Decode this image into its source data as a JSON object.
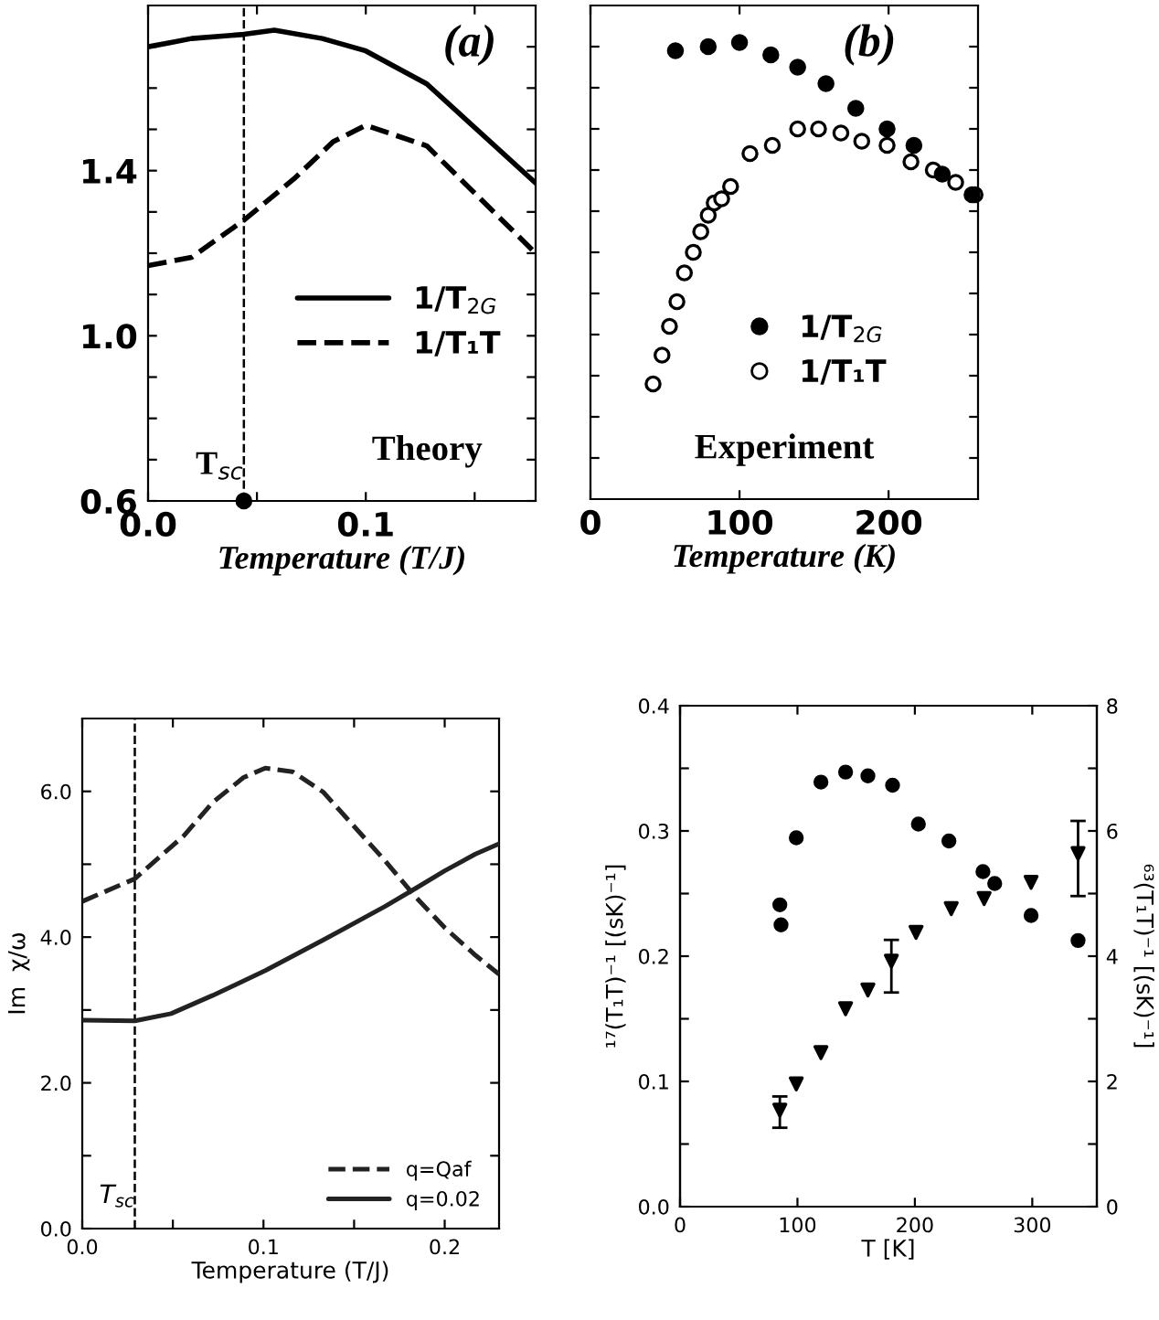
{
  "chart_data": [
    {
      "type": "line",
      "xlabel": "Temperature (T/J)",
      "annotations": [
        "(a)",
        "Theory"
      ],
      "xlim": [
        0,
        0.178
      ],
      "ylim": [
        0.6,
        1.8
      ],
      "xticks": [
        {
          "value": 0,
          "label": "0.0"
        },
        {
          "value": 0.05,
          "label": null
        },
        0.1,
        {
          "value": 0.15,
          "label": null
        }
      ],
      "yticks": [
        0.6,
        {
          "value": 0.7,
          "label": null
        },
        {
          "value": 0.8,
          "label": null
        },
        {
          "value": 0.9,
          "label": null
        },
        {
          "value": 1,
          "label": "1.0"
        },
        {
          "value": 1.1,
          "label": null
        },
        {
          "value": 1.2,
          "label": null
        },
        {
          "value": 1.3,
          "label": null
        },
        1.4,
        {
          "value": 1.5,
          "label": null
        },
        {
          "value": 1.6,
          "label": null
        },
        {
          "value": 1.7,
          "label": null
        }
      ],
      "legend": "right",
      "ref_lines": [
        {
          "axis": "x",
          "value": 0.044,
          "label": "T$_{sc}$",
          "line_style": "dashed",
          "color": "#000000"
        }
      ],
      "series": [
        {
          "name": "1/T$_{2G}$",
          "color": "#000000",
          "line_style": "solid",
          "x": [
            0,
            0.01,
            0.02,
            0.044,
            0.058,
            0.08,
            0.1,
            0.128,
            0.153,
            0.178
          ],
          "values": [
            1.7,
            1.71,
            1.72,
            1.73,
            1.74,
            1.72,
            1.69,
            1.61,
            1.49,
            1.37
          ]
        },
        {
          "name": "1/T₁T",
          "color": "#000000",
          "line_style": "dashed",
          "x": [
            0,
            0.02,
            0.044,
            0.067,
            0.085,
            0.1,
            0.128,
            0.153,
            0.178
          ],
          "values": [
            1.17,
            1.19,
            1.28,
            1.38,
            1.47,
            1.51,
            1.46,
            1.33,
            1.2
          ]
        },
        {
          "type": "scatter",
          "color": "#000000",
          "marker": "circle",
          "x": [
            0.044
          ],
          "values": [
            0.6
          ]
        }
      ]
    },
    {
      "type": "scatter",
      "xlabel": "Temperature (K)",
      "annotations": [
        "(b)",
        "Experiment"
      ],
      "xlim": [
        0,
        260
      ],
      "ylim": [
        0.6,
        1.8
      ],
      "xticks": [
        0,
        100,
        200
      ],
      "yticks": [
        {
          "value": 0.7,
          "label": null
        },
        {
          "value": 0.8,
          "label": null
        },
        {
          "value": 0.9,
          "label": null
        },
        {
          "value": 1.0,
          "label": null
        },
        {
          "value": 1.1,
          "label": null
        },
        {
          "value": 1.2,
          "label": null
        },
        {
          "value": 1.3,
          "label": null
        },
        {
          "value": 1.4,
          "label": null
        },
        {
          "value": 1.5,
          "label": null
        },
        {
          "value": 1.6,
          "label": null
        },
        {
          "value": 1.7,
          "label": null
        }
      ],
      "tick_labels": "x",
      "legend": "center",
      "marker": "circle",
      "series": [
        {
          "name": "1/T$_{2G}$",
          "color": "#000000",
          "x": [
            57,
            79,
            100,
            121,
            139,
            158,
            178,
            199,
            217,
            236,
            256
          ],
          "values": [
            1.69,
            1.7,
            1.71,
            1.68,
            1.65,
            1.61,
            1.55,
            1.5,
            1.46,
            1.39,
            1.34
          ]
        },
        {
          "name": "1/T₁T",
          "color": "#ffffff",
          "x": [
            42,
            48,
            53,
            58,
            63,
            69,
            74,
            79,
            83,
            88,
            94,
            107,
            122,
            139,
            153,
            168,
            182,
            199,
            215,
            230,
            245,
            258
          ],
          "values": [
            0.88,
            0.95,
            1.02,
            1.08,
            1.15,
            1.2,
            1.25,
            1.29,
            1.32,
            1.33,
            1.36,
            1.44,
            1.46,
            1.5,
            1.5,
            1.49,
            1.47,
            1.46,
            1.42,
            1.4,
            1.37,
            1.34
          ]
        }
      ]
    },
    {
      "type": "line",
      "xlabel": "Temperature (T/J)",
      "ylabel": "Im  χ/ω",
      "xlim": [
        0,
        0.23
      ],
      "ylim": [
        0,
        7
      ],
      "xticks": [
        {
          "value": 0,
          "label": "0.0"
        },
        {
          "value": 0.05,
          "label": null
        },
        0.1,
        {
          "value": 0.15,
          "label": null
        },
        0.2
      ],
      "yticks": [
        {
          "value": 0,
          "label": "0.0"
        },
        {
          "value": 1,
          "label": null
        },
        {
          "value": 2,
          "label": "2.0"
        },
        {
          "value": 3,
          "label": null
        },
        {
          "value": 4,
          "label": "4.0"
        },
        {
          "value": 5,
          "label": null
        },
        {
          "value": 6,
          "label": "6.0"
        }
      ],
      "legend": "lower right",
      "ref_lines": [
        {
          "axis": "x",
          "value": 0.029,
          "label": "T$_{sc}$",
          "line_style": "dashed",
          "color": "#000000"
        }
      ],
      "series": [
        {
          "name": "q=Qaf",
          "color": "#222222",
          "line_style": "dashed",
          "x": [
            0,
            0.029,
            0.056,
            0.072,
            0.089,
            0.101,
            0.116,
            0.133,
            0.15,
            0.167,
            0.184,
            0.2,
            0.217,
            0.23
          ],
          "values": [
            4.49,
            4.8,
            5.39,
            5.85,
            6.19,
            6.32,
            6.27,
            5.99,
            5.52,
            5.05,
            4.55,
            4.13,
            3.75,
            3.49
          ]
        },
        {
          "name": "q=0.02",
          "color": "#222222",
          "line_style": "solid",
          "x": [
            0,
            0.029,
            0.049,
            0.072,
            0.101,
            0.133,
            0.167,
            0.184,
            0.2,
            0.217,
            0.23
          ],
          "values": [
            2.86,
            2.85,
            2.95,
            3.2,
            3.54,
            3.96,
            4.42,
            4.67,
            4.91,
            5.14,
            5.28
          ]
        }
      ]
    },
    {
      "type": "scatter",
      "xlabel": "T [K]",
      "ylabel": "¹⁷(T₁T)⁻¹ [(sK)⁻¹]",
      "y2label": "⁶³(T₁T)⁻¹ [(sK)⁻¹]",
      "xlim": [
        0,
        355
      ],
      "ylim": [
        0,
        0.4
      ],
      "y2lim": [
        0,
        8
      ],
      "xticks": [
        0,
        100,
        200,
        300
      ],
      "yticks": [
        {
          "value": 0,
          "label": "0.0"
        },
        {
          "value": 0.05,
          "label": null
        },
        0.1,
        {
          "value": 0.15,
          "label": null
        },
        0.2,
        {
          "value": 0.25,
          "label": null
        },
        0.3,
        {
          "value": 0.35,
          "label": null
        },
        0.4
      ],
      "y2ticks": [
        0,
        {
          "value": 1,
          "label": null
        },
        2,
        {
          "value": 3,
          "label": null
        },
        4,
        {
          "value": 5,
          "label": null
        },
        6,
        {
          "value": 7,
          "label": null
        },
        8
      ],
      "series": [
        {
          "color": "#000000",
          "marker": "circle",
          "axis": "y2",
          "x": [
            85,
            86,
            99,
            120,
            141,
            160,
            181,
            203,
            229,
            258,
            268,
            299,
            339
          ],
          "values": [
            4.82,
            4.5,
            5.89,
            6.78,
            6.94,
            6.88,
            6.73,
            6.11,
            5.84,
            5.35,
            5.16,
            4.65,
            4.25
          ]
        },
        {
          "color": "#000000",
          "marker": "triangle",
          "x": [
            85,
            99,
            120,
            141,
            160,
            180,
            201,
            231,
            259,
            299,
            339
          ],
          "values": [
            0.077,
            0.098,
            0.123,
            0.158,
            0.173,
            0.196,
            0.219,
            0.238,
            0.246,
            0.259,
            0.282
          ],
          "errors": [
            [
              0.063,
              0.088
            ],
            null,
            null,
            null,
            null,
            [
              0.171,
              0.213
            ],
            null,
            null,
            null,
            null,
            [
              0.248,
              0.308
            ]
          ]
        }
      ]
    }
  ]
}
